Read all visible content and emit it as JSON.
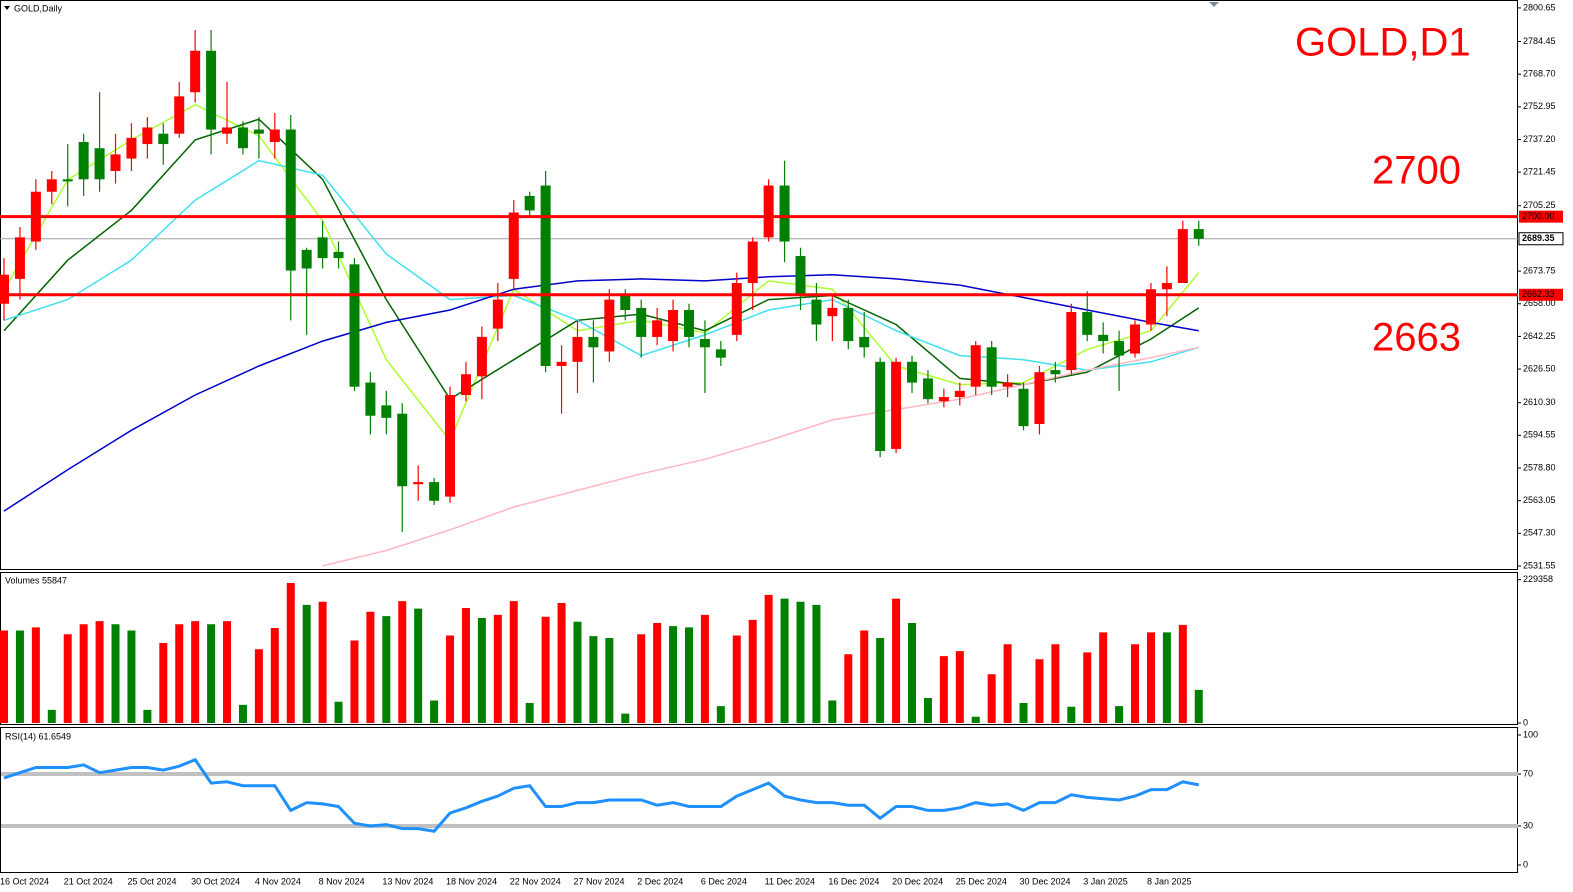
{
  "chart_data": [
    {
      "type": "candlestick",
      "title": "GOLD,Daily",
      "categories": [
        "16 Oct 2024",
        null,
        null,
        null,
        "21 Oct 2024",
        null,
        null,
        null,
        "25 Oct 2024",
        null,
        null,
        null,
        "30 Oct 2024",
        null,
        null,
        null,
        "4 Nov 2024",
        null,
        null,
        null,
        "8 Nov 2024",
        null,
        null,
        null,
        "13 Nov 2024",
        null,
        null,
        null,
        "18 Nov 2024",
        null,
        null,
        null,
        "22 Nov 2024",
        null,
        null,
        null,
        "27 Nov 2024",
        null,
        null,
        null,
        "2 Dec 2024",
        null,
        null,
        null,
        "6 Dec 2024",
        null,
        null,
        null,
        "11 Dec 2024",
        null,
        null,
        null,
        "16 Dec 2024",
        null,
        null,
        null,
        "20 Dec 2024",
        null,
        null,
        null,
        "25 Dec 2024",
        null,
        null,
        null,
        "30 Dec 2024",
        null,
        null,
        null,
        "3 Jan 2025",
        null,
        null,
        null,
        "8 Jan 2025",
        null,
        null,
        null
      ],
      "open": [
        2658,
        2670,
        2688,
        2712,
        2718,
        2736,
        2733,
        2722,
        2728,
        2735,
        2740,
        2740,
        2760,
        2780,
        2740,
        2743,
        2742,
        2736,
        2742,
        2684,
        2690,
        2683,
        2677,
        2620,
        2609,
        2605,
        2571,
        2572,
        2565,
        2614,
        2623,
        2646,
        2670,
        2710,
        2715,
        2628,
        2630,
        2642,
        2635,
        2662,
        2656,
        2642,
        2640,
        2655,
        2641,
        2636,
        2643,
        2668,
        2690,
        2715,
        2681,
        2660,
        2652,
        2656,
        2642,
        2630,
        2588,
        2630,
        2622,
        2611,
        2613,
        2618,
        2637,
        2618,
        2617,
        2600,
        2626,
        2626,
        2654,
        2643,
        2640,
        2634,
        2648,
        2665,
        2668,
        2694
      ],
      "high": [
        2680,
        2695,
        2718,
        2722,
        2735,
        2740,
        2760,
        2740,
        2745,
        2748,
        2745,
        2765,
        2790,
        2790,
        2765,
        2746,
        2748,
        2750,
        2749,
        2685,
        2698,
        2688,
        2680,
        2625,
        2616,
        2610,
        2580,
        2574,
        2618,
        2630,
        2647,
        2668,
        2708,
        2712,
        2722,
        2638,
        2650,
        2650,
        2665,
        2665,
        2660,
        2656,
        2660,
        2658,
        2650,
        2640,
        2673,
        2690,
        2718,
        2727,
        2685,
        2668,
        2662,
        2660,
        2654,
        2632,
        2632,
        2633,
        2626,
        2617,
        2620,
        2640,
        2640,
        2624,
        2620,
        2628,
        2630,
        2658,
        2664,
        2649,
        2645,
        2650,
        2668,
        2676,
        2698,
        2698
      ],
      "low": [
        2650,
        2660,
        2684,
        2706,
        2705,
        2710,
        2712,
        2716,
        2722,
        2728,
        2725,
        2738,
        2755,
        2730,
        2735,
        2730,
        2728,
        2728,
        2650,
        2643,
        2675,
        2675,
        2616,
        2595,
        2595,
        2548,
        2563,
        2561,
        2562,
        2611,
        2612,
        2640,
        2665,
        2700,
        2625,
        2605,
        2615,
        2620,
        2630,
        2650,
        2632,
        2638,
        2635,
        2637,
        2615,
        2628,
        2640,
        2655,
        2688,
        2678,
        2655,
        2640,
        2640,
        2636,
        2632,
        2584,
        2586,
        2615,
        2610,
        2608,
        2609,
        2614,
        2614,
        2613,
        2597,
        2595,
        2620,
        2624,
        2640,
        2634,
        2616,
        2632,
        2645,
        2652,
        2668,
        2686
      ],
      "close": [
        2672,
        2690,
        2712,
        2718,
        2717,
        2718,
        2718,
        2730,
        2738,
        2743,
        2735,
        2758,
        2780,
        2742,
        2743,
        2733,
        2740,
        2742,
        2674,
        2675,
        2680,
        2680,
        2618,
        2604,
        2603,
        2570,
        2572,
        2563,
        2614,
        2624,
        2642,
        2660,
        2702,
        2703,
        2628,
        2630,
        2642,
        2637,
        2660,
        2655,
        2642,
        2650,
        2655,
        2642,
        2637,
        2632,
        2668,
        2688,
        2715,
        2688,
        2662,
        2648,
        2656,
        2640,
        2637,
        2587,
        2630,
        2620,
        2612,
        2613,
        2616,
        2638,
        2618,
        2620,
        2599,
        2625,
        2624,
        2654,
        2643,
        2640,
        2633,
        2648,
        2665,
        2668,
        2694,
        2689.35
      ],
      "up_color": "#ff0000",
      "down_color": "#008000",
      "moving_averages": [
        {
          "color": "#adff2f",
          "x": [
            0,
            4,
            8,
            12,
            16,
            20,
            24,
            28,
            32,
            36,
            40,
            44,
            48,
            52,
            56,
            60,
            64,
            68,
            72,
            75
          ],
          "values": [
            2664.6,
            2717.7,
            2737,
            2754,
            2739,
            2698,
            2631,
            2592,
            2665,
            2645,
            2650,
            2644,
            2669,
            2665,
            2628,
            2619,
            2620,
            2636,
            2645,
            2673
          ]
        },
        {
          "color": "#006400",
          "x": [
            0,
            4,
            8,
            12,
            16,
            20,
            24,
            28,
            32,
            36,
            40,
            44,
            48,
            52,
            56,
            60,
            64,
            68,
            72,
            75
          ],
          "values": [
            2645,
            2679,
            2703,
            2737,
            2747,
            2718,
            2660,
            2612,
            2631,
            2650,
            2653,
            2645,
            2660,
            2662,
            2648,
            2622,
            2619,
            2625,
            2641,
            2656
          ]
        },
        {
          "color": "#40e0f0",
          "x": [
            0,
            4,
            8,
            12,
            16,
            20,
            24,
            28,
            32,
            36,
            40,
            44,
            48,
            52,
            56,
            60,
            64,
            68,
            72,
            75
          ],
          "values": [
            2650,
            2660,
            2679,
            2708,
            2727,
            2720,
            2682,
            2660,
            2662,
            2650,
            2633,
            2643,
            2655,
            2660,
            2645,
            2633,
            2631,
            2626,
            2630,
            2637
          ]
        },
        {
          "color": "#0000cd",
          "x": [
            0,
            4,
            8,
            12,
            16,
            20,
            24,
            28,
            32,
            36,
            40,
            44,
            48,
            52,
            56,
            60,
            64,
            68,
            72,
            75
          ],
          "values": [
            2558,
            2578,
            2597,
            2614,
            2628,
            2640,
            2649,
            2655,
            2665,
            2669,
            2670,
            2669,
            2671,
            2672,
            2670,
            2667,
            2661,
            2655,
            2649,
            2645
          ]
        },
        {
          "color": "#ffb6c1",
          "x": [
            20,
            24,
            28,
            32,
            36,
            40,
            44,
            48,
            52,
            56,
            60,
            64,
            68,
            72,
            75
          ],
          "values": [
            2531.6,
            2539,
            2549,
            2560,
            2568,
            2576,
            2583,
            2592,
            2602,
            2607,
            2612,
            2619,
            2626,
            2632,
            2637
          ]
        }
      ],
      "hlines": [
        {
          "value": 2700,
          "label": "2700.00",
          "color": "#ff0000"
        },
        {
          "value": 2662.33,
          "label": "2662.33",
          "color": "#ff0000"
        }
      ],
      "price_line": {
        "value": 2689.35,
        "label": "2689.35",
        "color": "#a0a0a0"
      },
      "annotations": [
        {
          "text": "GOLD,D1"
        },
        {
          "text": "2700"
        },
        {
          "text": "2663"
        }
      ],
      "ylim": [
        2530.1,
        2803.5
      ],
      "yticks": [
        2800.65,
        2784.45,
        {
          "value": 2768.7,
          "label": "2768.70"
        },
        2752.95,
        {
          "value": 2737.2,
          "label": "2737.20"
        },
        2721.45,
        2705.25,
        2673.75,
        {
          "value": 2658,
          "label": "2658.00"
        },
        2642.25,
        {
          "value": 2626.5,
          "label": "2626.50"
        },
        {
          "value": 2610.3,
          "label": "2610.30"
        },
        2594.55,
        {
          "value": 2578.8,
          "label": "2578.80"
        },
        2563.05,
        {
          "value": 2547.3,
          "label": "2547.30"
        },
        2531.55
      ]
    },
    {
      "type": "bar",
      "title": "Volumes 55847",
      "values": [
        148000,
        148000,
        153000,
        21000,
        142000,
        158000,
        163000,
        158000,
        148000,
        21000,
        128000,
        158000,
        163000,
        158000,
        163000,
        29000,
        118000,
        152000,
        224000,
        189000,
        194000,
        34000,
        132000,
        178000,
        171000,
        195000,
        183000,
        36000,
        140000,
        184000,
        168000,
        173000,
        195000,
        32000,
        170000,
        192000,
        162000,
        139000,
        136000,
        15000,
        142000,
        160000,
        155000,
        153000,
        173000,
        27000,
        140000,
        165000,
        205000,
        199000,
        194000,
        189000,
        36000,
        110000,
        148000,
        136000,
        199000,
        160000,
        40000,
        107000,
        115000,
        10000,
        78000,
        126000,
        32000,
        102000,
        126000,
        26000,
        113000,
        145000,
        27000,
        126000,
        145000,
        145000,
        157000,
        53000
      ],
      "up_color": "#ff0000",
      "down_color": "#008000",
      "ylim": [
        0,
        240000
      ],
      "yticks": [
        0,
        229358
      ]
    },
    {
      "type": "line",
      "title": "RSI(14) 61.6549",
      "values": [
        67,
        71,
        75,
        75,
        75,
        77,
        71,
        73,
        75,
        75,
        73,
        76,
        81,
        63,
        64,
        61,
        61,
        61,
        42,
        48,
        47,
        45,
        32,
        30,
        31,
        28,
        28,
        26,
        40,
        44,
        49,
        53,
        59,
        61,
        45,
        45,
        48,
        48,
        50,
        50,
        50,
        46,
        48,
        45,
        45,
        45,
        53,
        58,
        63,
        53,
        50,
        48,
        48,
        46,
        46,
        36,
        45,
        45,
        42,
        42,
        44,
        48,
        46,
        47,
        42,
        48,
        48,
        54,
        52,
        51,
        50,
        53,
        58,
        58,
        64,
        61.6549
      ],
      "color": "#1e90ff",
      "levels": [
        70,
        30
      ],
      "level_color": "#c0c0c0",
      "ylim": [
        -5.4,
        105.4
      ],
      "yticks": [
        100,
        70,
        30,
        0
      ]
    }
  ]
}
